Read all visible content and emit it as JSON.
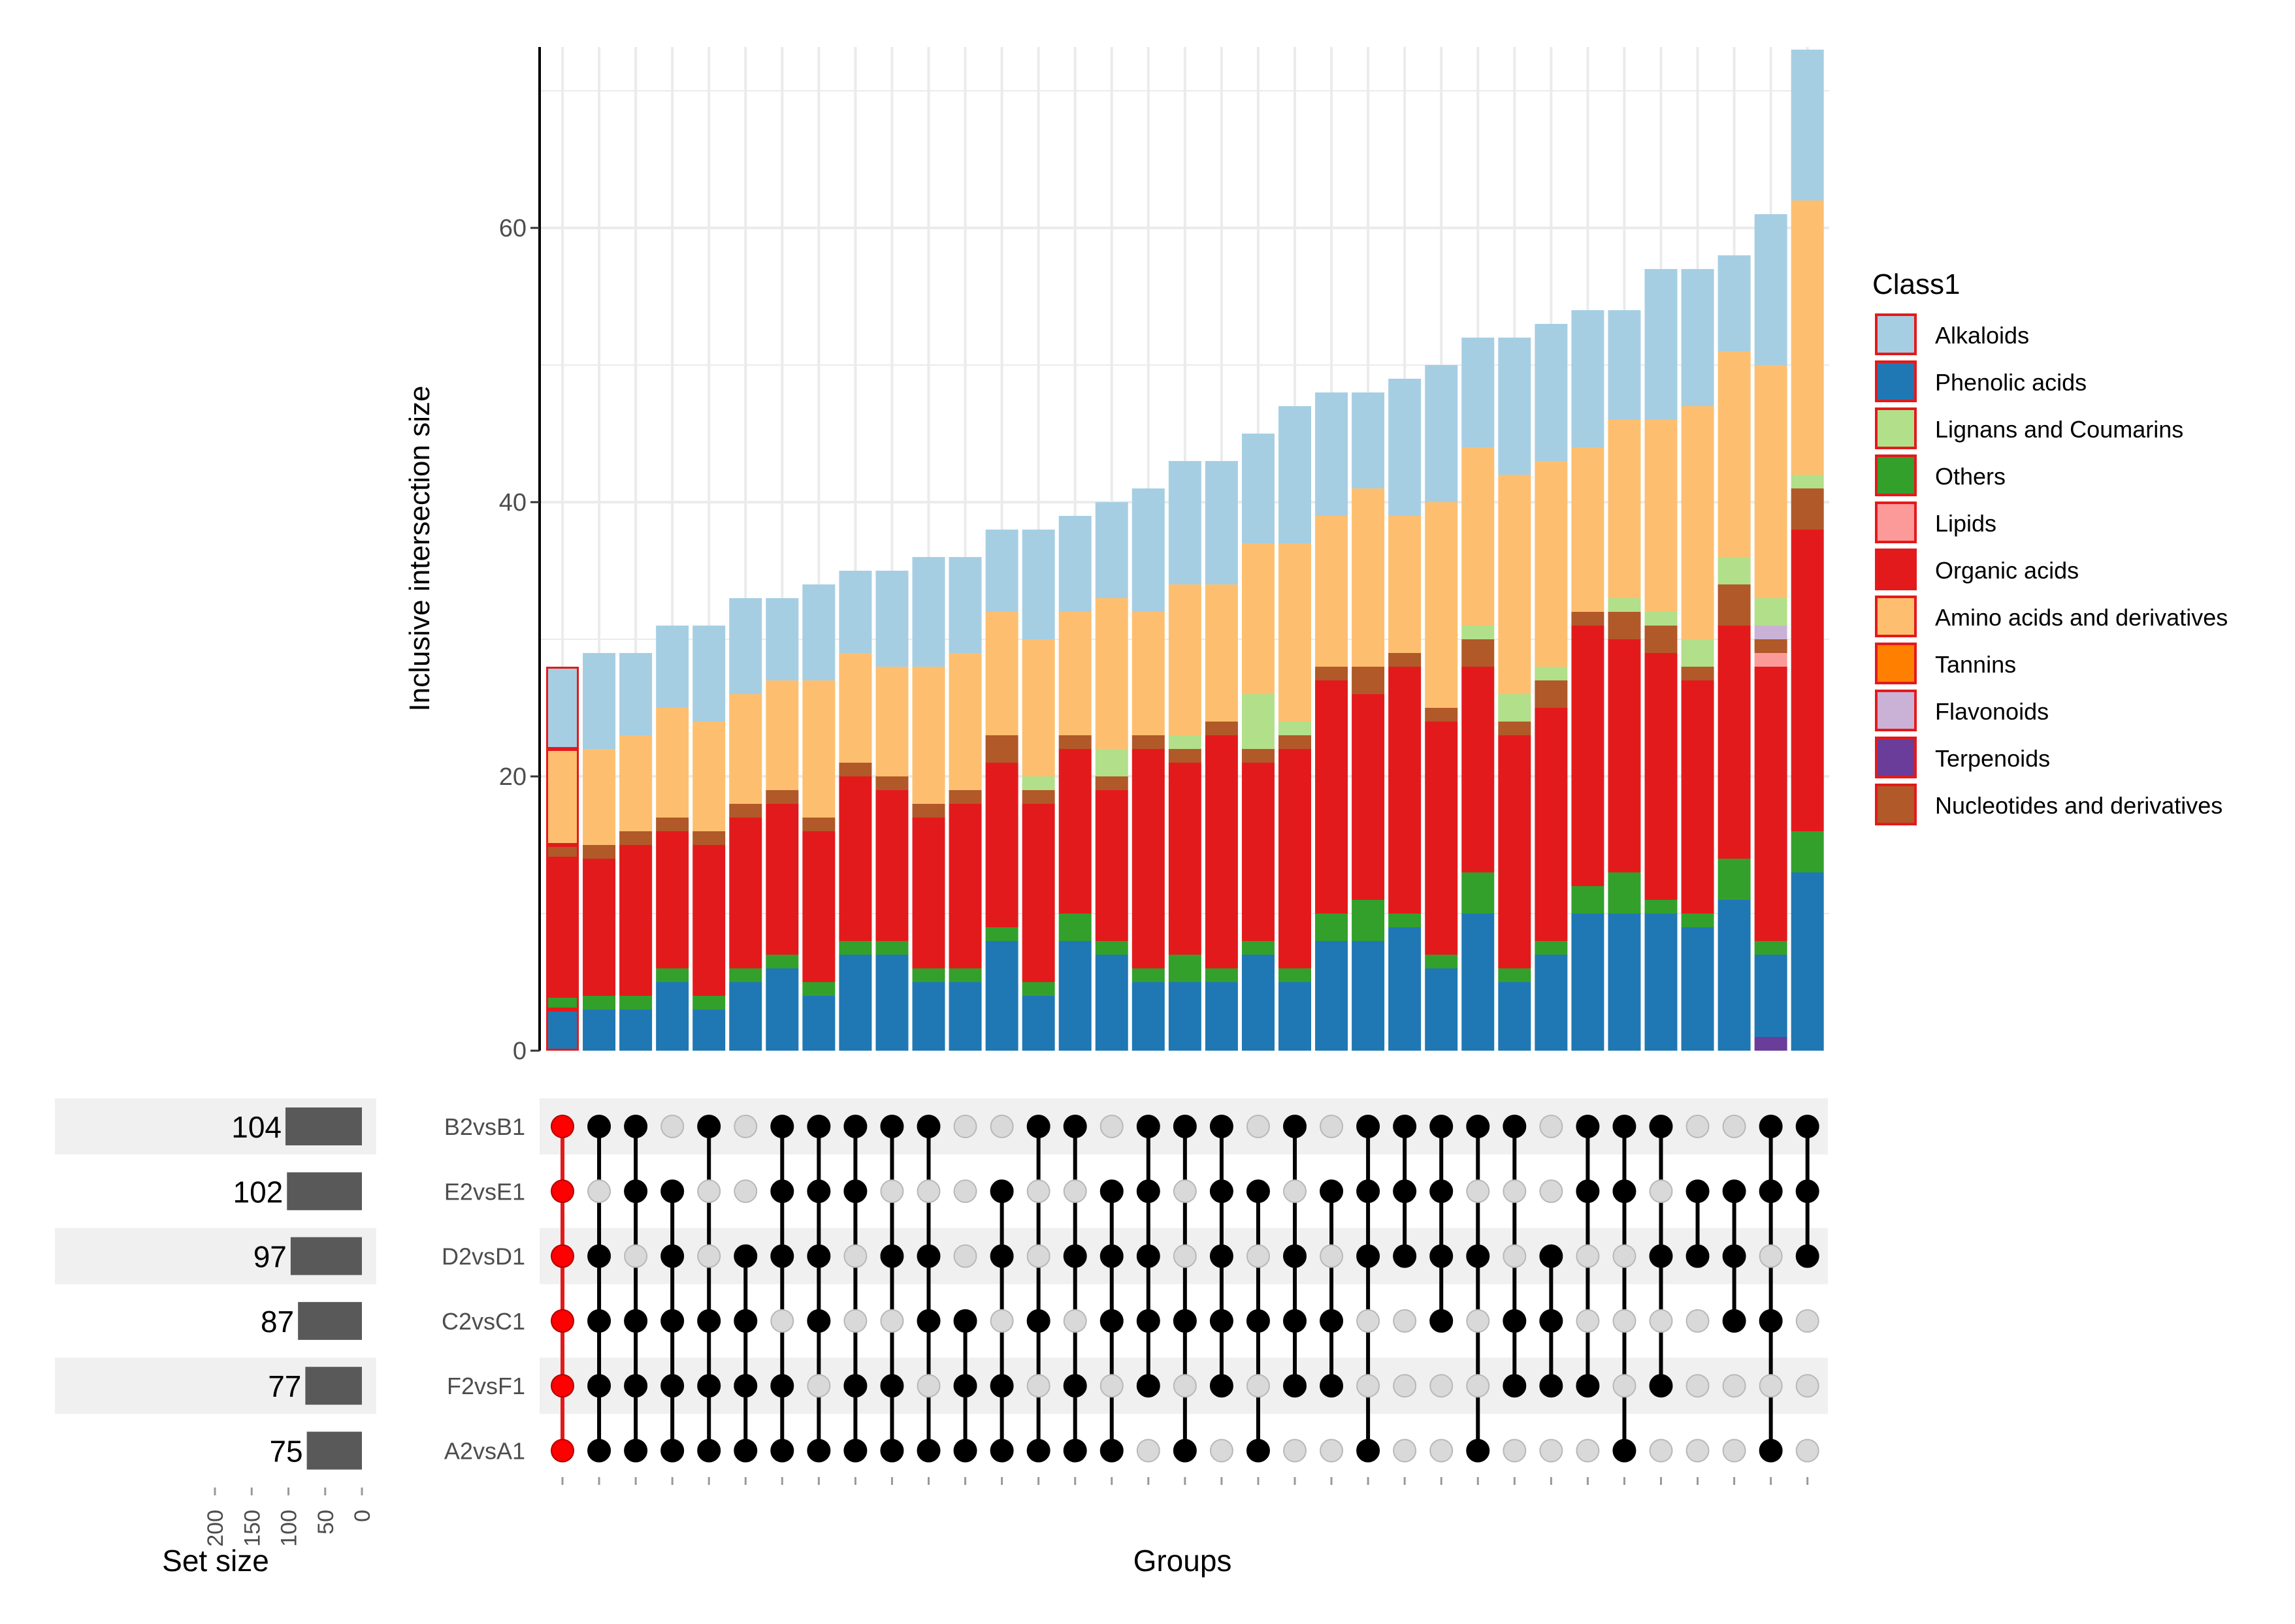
{
  "chart_data": {
    "type": "upset",
    "ylabel": "Inclusive intersection size",
    "xlabel": "Groups",
    "set_size_label": "Set size",
    "ylim": [
      0,
      73
    ],
    "yticks": [
      0,
      20,
      40,
      60
    ],
    "size_ticks": [
      200,
      150,
      100,
      50,
      0
    ],
    "legend_title": "Class1",
    "classes": [
      {
        "name": "Alkaloids",
        "color": "#A6CEE3"
      },
      {
        "name": "Phenolic acids",
        "color": "#1F78B4"
      },
      {
        "name": "Lignans and Coumarins",
        "color": "#B2DF8A"
      },
      {
        "name": "Others",
        "color": "#33A02C"
      },
      {
        "name": "Lipids",
        "color": "#FB9A99"
      },
      {
        "name": "Organic acids",
        "color": "#E31A1C"
      },
      {
        "name": "Amino acids and derivatives",
        "color": "#FDBF6F"
      },
      {
        "name": "Tannins",
        "color": "#FF7F00"
      },
      {
        "name": "Flavonoids",
        "color": "#CAB2D6"
      },
      {
        "name": "Terpenoids",
        "color": "#6A3D9A"
      },
      {
        "name": "Nucleotides and derivatives",
        "color": "#B15928"
      }
    ],
    "stack_order": [
      "Terpenoids",
      "Phenolic acids",
      "Others",
      "Organic acids",
      "Lipids",
      "Nucleotides and derivatives",
      "Flavonoids",
      "Lignans and Coumarins",
      "Tannins",
      "Amino acids and derivatives",
      "Alkaloids"
    ],
    "sets": [
      {
        "name": "B2vsB1",
        "size": 104
      },
      {
        "name": "E2vsE1",
        "size": 102
      },
      {
        "name": "D2vsD1",
        "size": 97
      },
      {
        "name": "C2vsC1",
        "size": 87
      },
      {
        "name": "F2vsF1",
        "size": 77
      },
      {
        "name": "A2vsA1",
        "size": 75
      }
    ],
    "highlight_column": 0,
    "columns": [
      {
        "members": [
          1,
          1,
          1,
          1,
          1,
          1
        ],
        "values": {
          "Phenolic acids": 3,
          "Others": 1,
          "Organic acids": 10,
          "Nucleotides and derivatives": 1,
          "Amino acids and derivatives": 7,
          "Alkaloids": 6
        }
      },
      {
        "members": [
          1,
          0,
          1,
          1,
          1,
          1
        ],
        "values": {
          "Phenolic acids": 3,
          "Others": 1,
          "Organic acids": 10,
          "Nucleotides and derivatives": 1,
          "Amino acids and derivatives": 7,
          "Alkaloids": 7
        }
      },
      {
        "members": [
          1,
          1,
          0,
          1,
          1,
          1
        ],
        "values": {
          "Phenolic acids": 3,
          "Others": 1,
          "Organic acids": 11,
          "Nucleotides and derivatives": 1,
          "Amino acids and derivatives": 7,
          "Alkaloids": 6
        }
      },
      {
        "members": [
          0,
          1,
          1,
          1,
          1,
          1
        ],
        "values": {
          "Phenolic acids": 5,
          "Others": 1,
          "Organic acids": 10,
          "Nucleotides and derivatives": 1,
          "Amino acids and derivatives": 8,
          "Alkaloids": 6
        }
      },
      {
        "members": [
          1,
          0,
          0,
          1,
          1,
          1
        ],
        "values": {
          "Phenolic acids": 3,
          "Others": 1,
          "Organic acids": 11,
          "Nucleotides and derivatives": 1,
          "Amino acids and derivatives": 8,
          "Alkaloids": 7
        }
      },
      {
        "members": [
          0,
          0,
          1,
          1,
          1,
          1
        ],
        "values": {
          "Phenolic acids": 5,
          "Others": 1,
          "Organic acids": 11,
          "Nucleotides and derivatives": 1,
          "Amino acids and derivatives": 8,
          "Alkaloids": 7
        }
      },
      {
        "members": [
          1,
          1,
          1,
          0,
          1,
          1
        ],
        "values": {
          "Phenolic acids": 6,
          "Others": 1,
          "Organic acids": 11,
          "Nucleotides and derivatives": 1,
          "Amino acids and derivatives": 8,
          "Alkaloids": 6
        }
      },
      {
        "members": [
          1,
          1,
          1,
          1,
          0,
          1
        ],
        "values": {
          "Phenolic acids": 4,
          "Others": 1,
          "Organic acids": 11,
          "Nucleotides and derivatives": 1,
          "Amino acids and derivatives": 10,
          "Alkaloids": 7
        }
      },
      {
        "members": [
          1,
          1,
          0,
          0,
          1,
          1
        ],
        "values": {
          "Phenolic acids": 7,
          "Others": 1,
          "Organic acids": 12,
          "Nucleotides and derivatives": 1,
          "Amino acids and derivatives": 8,
          "Alkaloids": 6
        }
      },
      {
        "members": [
          1,
          0,
          1,
          0,
          1,
          1
        ],
        "values": {
          "Phenolic acids": 7,
          "Others": 1,
          "Organic acids": 11,
          "Nucleotides and derivatives": 1,
          "Amino acids and derivatives": 8,
          "Alkaloids": 7
        }
      },
      {
        "members": [
          1,
          0,
          1,
          1,
          0,
          1
        ],
        "values": {
          "Phenolic acids": 5,
          "Others": 1,
          "Organic acids": 11,
          "Nucleotides and derivatives": 1,
          "Amino acids and derivatives": 10,
          "Alkaloids": 8
        }
      },
      {
        "members": [
          0,
          0,
          0,
          1,
          1,
          1
        ],
        "values": {
          "Phenolic acids": 5,
          "Others": 1,
          "Organic acids": 12,
          "Nucleotides and derivatives": 1,
          "Amino acids and derivatives": 10,
          "Alkaloids": 7
        }
      },
      {
        "members": [
          0,
          1,
          1,
          0,
          1,
          1
        ],
        "values": {
          "Phenolic acids": 8,
          "Others": 1,
          "Organic acids": 12,
          "Nucleotides and derivatives": 2,
          "Amino acids and derivatives": 9,
          "Alkaloids": 6
        }
      },
      {
        "members": [
          1,
          0,
          0,
          1,
          0,
          1
        ],
        "values": {
          "Phenolic acids": 4,
          "Others": 1,
          "Organic acids": 13,
          "Nucleotides and derivatives": 1,
          "Lignans and Coumarins": 1,
          "Amino acids and derivatives": 10,
          "Alkaloids": 8
        }
      },
      {
        "members": [
          1,
          0,
          1,
          0,
          1,
          1
        ],
        "values": {
          "Phenolic acids": 8,
          "Others": 2,
          "Organic acids": 12,
          "Nucleotides and derivatives": 1,
          "Amino acids and derivatives": 9,
          "Alkaloids": 7
        }
      },
      {
        "members": [
          0,
          1,
          1,
          1,
          0,
          1
        ],
        "values": {
          "Phenolic acids": 7,
          "Others": 1,
          "Organic acids": 11,
          "Nucleotides and derivatives": 1,
          "Lignans and Coumarins": 2,
          "Amino acids and derivatives": 11,
          "Alkaloids": 7
        }
      },
      {
        "members": [
          1,
          1,
          1,
          1,
          1,
          0
        ],
        "values": {
          "Phenolic acids": 5,
          "Others": 1,
          "Organic acids": 16,
          "Nucleotides and derivatives": 1,
          "Amino acids and derivatives": 9,
          "Alkaloids": 9
        }
      },
      {
        "members": [
          1,
          0,
          0,
          1,
          0,
          1
        ],
        "values": {
          "Phenolic acids": 5,
          "Others": 2,
          "Organic acids": 14,
          "Nucleotides and derivatives": 1,
          "Lignans and Coumarins": 1,
          "Amino acids and derivatives": 11,
          "Alkaloids": 9
        }
      },
      {
        "members": [
          1,
          1,
          1,
          1,
          1,
          0
        ],
        "values": {
          "Phenolic acids": 5,
          "Others": 1,
          "Organic acids": 17,
          "Nucleotides and derivatives": 1,
          "Amino acids and derivatives": 10,
          "Alkaloids": 9
        }
      },
      {
        "members": [
          0,
          1,
          0,
          1,
          0,
          1
        ],
        "values": {
          "Phenolic acids": 7,
          "Others": 1,
          "Organic acids": 13,
          "Nucleotides and derivatives": 1,
          "Lignans and Coumarins": 4,
          "Amino acids and derivatives": 11,
          "Alkaloids": 8
        }
      },
      {
        "members": [
          1,
          0,
          1,
          1,
          1,
          0
        ],
        "values": {
          "Phenolic acids": 5,
          "Others": 1,
          "Organic acids": 16,
          "Nucleotides and derivatives": 1,
          "Lignans and Coumarins": 1,
          "Amino acids and derivatives": 13,
          "Alkaloids": 10
        }
      },
      {
        "members": [
          0,
          1,
          0,
          1,
          1,
          0
        ],
        "values": {
          "Phenolic acids": 8,
          "Others": 2,
          "Organic acids": 17,
          "Nucleotides and derivatives": 1,
          "Amino acids and derivatives": 11,
          "Alkaloids": 9
        }
      },
      {
        "members": [
          1,
          1,
          1,
          0,
          0,
          1
        ],
        "values": {
          "Phenolic acids": 8,
          "Others": 3,
          "Organic acids": 15,
          "Nucleotides and derivatives": 2,
          "Amino acids and derivatives": 13,
          "Alkaloids": 7
        }
      },
      {
        "members": [
          1,
          1,
          1,
          0,
          0,
          0
        ],
        "values": {
          "Phenolic acids": 9,
          "Others": 1,
          "Organic acids": 18,
          "Nucleotides and derivatives": 1,
          "Amino acids and derivatives": 10,
          "Alkaloids": 10
        }
      },
      {
        "members": [
          1,
          1,
          1,
          1,
          0,
          0
        ],
        "values": {
          "Phenolic acids": 6,
          "Others": 1,
          "Organic acids": 17,
          "Nucleotides and derivatives": 1,
          "Amino acids and derivatives": 15,
          "Alkaloids": 10
        }
      },
      {
        "members": [
          1,
          0,
          1,
          0,
          0,
          1
        ],
        "values": {
          "Phenolic acids": 10,
          "Others": 3,
          "Organic acids": 15,
          "Nucleotides and derivatives": 2,
          "Lignans and Coumarins": 1,
          "Amino acids and derivatives": 13,
          "Alkaloids": 8
        }
      },
      {
        "members": [
          1,
          0,
          0,
          1,
          1,
          0
        ],
        "values": {
          "Phenolic acids": 5,
          "Others": 1,
          "Organic acids": 17,
          "Nucleotides and derivatives": 1,
          "Lignans and Coumarins": 2,
          "Amino acids and derivatives": 16,
          "Alkaloids": 10
        }
      },
      {
        "members": [
          0,
          0,
          1,
          1,
          1,
          0
        ],
        "values": {
          "Phenolic acids": 7,
          "Others": 1,
          "Organic acids": 17,
          "Nucleotides and derivatives": 2,
          "Lignans and Coumarins": 1,
          "Amino acids and derivatives": 15,
          "Alkaloids": 10
        }
      },
      {
        "members": [
          1,
          1,
          0,
          0,
          1,
          0
        ],
        "values": {
          "Phenolic acids": 10,
          "Others": 2,
          "Organic acids": 19,
          "Nucleotides and derivatives": 1,
          "Amino acids and derivatives": 12,
          "Alkaloids": 10
        }
      },
      {
        "members": [
          1,
          1,
          0,
          0,
          0,
          1
        ],
        "values": {
          "Phenolic acids": 10,
          "Others": 3,
          "Organic acids": 17,
          "Nucleotides and derivatives": 2,
          "Lignans and Coumarins": 1,
          "Amino acids and derivatives": 13,
          "Alkaloids": 8
        }
      },
      {
        "members": [
          1,
          0,
          1,
          0,
          1,
          0
        ],
        "values": {
          "Phenolic acids": 10,
          "Others": 1,
          "Organic acids": 18,
          "Nucleotides and derivatives": 2,
          "Lignans and Coumarins": 1,
          "Amino acids and derivatives": 14,
          "Alkaloids": 11
        }
      },
      {
        "members": [
          0,
          1,
          1,
          0,
          0,
          0
        ],
        "values": {
          "Phenolic acids": 9,
          "Others": 1,
          "Organic acids": 17,
          "Nucleotides and derivatives": 1,
          "Lignans and Coumarins": 2,
          "Amino acids and derivatives": 17,
          "Alkaloids": 10
        }
      },
      {
        "members": [
          0,
          1,
          1,
          1,
          0,
          0
        ],
        "values": {
          "Phenolic acids": 11,
          "Others": 3,
          "Organic acids": 17,
          "Nucleotides and derivatives": 3,
          "Lignans and Coumarins": 2,
          "Amino acids and derivatives": 15,
          "Alkaloids": 7
        }
      },
      {
        "members": [
          1,
          1,
          0,
          1,
          0,
          1
        ],
        "values": {
          "Terpenoids": 1,
          "Phenolic acids": 6,
          "Others": 1,
          "Organic acids": 20,
          "Nucleotides and derivatives": 1,
          "Lipids": 1,
          "Lignans and Coumarins": 2,
          "Flavonoids": 1,
          "Amino acids and derivatives": 17,
          "Alkaloids": 11
        }
      },
      {
        "members": [
          1,
          1,
          1,
          0,
          0,
          0
        ],
        "values": {
          "Phenolic acids": 13,
          "Others": 3,
          "Organic acids": 22,
          "Nucleotides and derivatives": 3,
          "Lignans and Coumarins": 1,
          "Amino acids and derivatives": 20,
          "Alkaloids": 11
        }
      }
    ]
  }
}
